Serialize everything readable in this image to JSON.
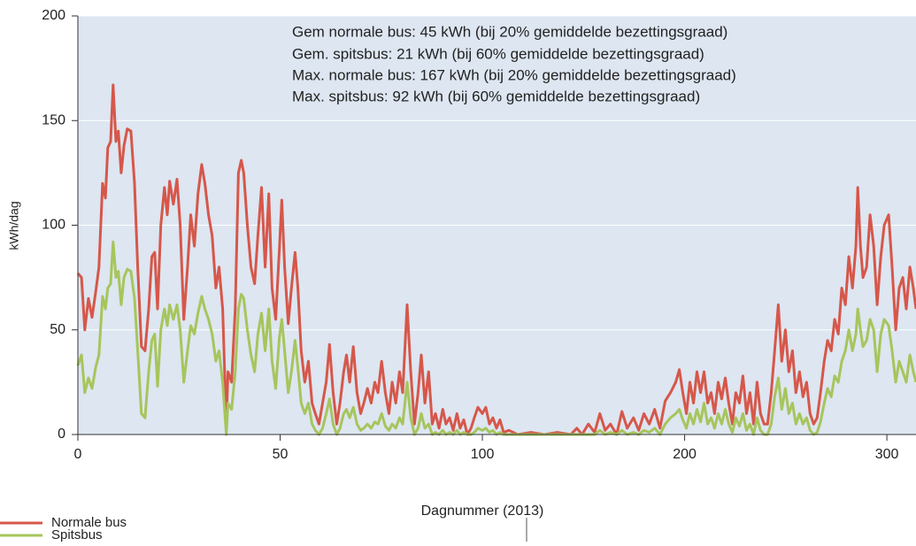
{
  "chart_data": {
    "type": "line",
    "annotations": [
      "Gem normale bus: 45 kWh (bij 20% gemiddelde bezettingsgraad)",
      "Gem. spitsbus: 21 kWh (bij 60% gemiddelde bezettingsgraad)",
      "Max. normale bus: 167 kWh (bij 20% gemiddelde bezettingsgraad)",
      "Max. spitsbus: 92 kWh (bij 60% gemiddelde bezettingsgraad)"
    ],
    "x_label": "Dagnummer (2013)",
    "y_label": "kWh/dag",
    "xlim": [
      0,
      314.4
    ],
    "xticks": [
      0,
      50,
      100,
      200,
      300
    ],
    "ylim": [
      0,
      200
    ],
    "yticks": [
      0,
      50,
      100,
      150,
      200
    ],
    "grid": true,
    "x": [
      0,
      0.9,
      1.7,
      2.6,
      3.5,
      4.4,
      5.2,
      6.1,
      6.8,
      7.4,
      8.1,
      8.7,
      9.4,
      10.0,
      10.7,
      11.4,
      12.2,
      13.1,
      14.0,
      14.8,
      15.7,
      16.6,
      17.5,
      18.3,
      19.0,
      19.7,
      20.5,
      21.4,
      22.1,
      22.7,
      23.6,
      24.5,
      25.3,
      26.2,
      27.1,
      27.9,
      28.8,
      29.7,
      30.6,
      31.4,
      32.3,
      33.2,
      34.1,
      34.9,
      35.8,
      36.7,
      37.1,
      38.0,
      38.9,
      39.7,
      40.4,
      41.0,
      41.9,
      42.8,
      43.7,
      44.5,
      45.4,
      46.3,
      47.2,
      48.0,
      48.9,
      49.8,
      50.4,
      51.1,
      52.0,
      52.8,
      53.7,
      54.4,
      55.2,
      56.1,
      57.0,
      57.9,
      58.7,
      59.6,
      60.5,
      61.4,
      62.2,
      63.1,
      64.0,
      64.8,
      65.7,
      66.4,
      67.2,
      68.1,
      69.0,
      69.9,
      70.7,
      71.6,
      72.5,
      73.4,
      74.2,
      75.1,
      76.0,
      76.9,
      77.7,
      78.6,
      79.5,
      80.3,
      81.4,
      82.3,
      83.2,
      84.1,
      84.9,
      85.8,
      86.7,
      87.6,
      88.4,
      89.3,
      90.2,
      91.0,
      91.9,
      92.8,
      93.7,
      94.5,
      95.4,
      96.3,
      97.2,
      98.0,
      98.9,
      100,
      101.7,
      103.5,
      105.2,
      107.0,
      108.7,
      110.5,
      113.1,
      117.5,
      124.0,
      130.6,
      137.1,
      143.7,
      146.7,
      149.3,
      152.4,
      155.5,
      158.1,
      160.7,
      163.3,
      166.4,
      169.0,
      171.6,
      174.7,
      177.3,
      179.9,
      182.5,
      185.2,
      187.8,
      190.4,
      193.0,
      195.6,
      197.4,
      199.1,
      200.9,
      202.6,
      204.4,
      206.1,
      207.9,
      209.6,
      211.4,
      213.1,
      214.8,
      216.6,
      218.3,
      220.1,
      221.8,
      223.6,
      225.3,
      227.1,
      228.8,
      230.6,
      232.3,
      234.1,
      235.8,
      237.5,
      239.3,
      241.0,
      242.8,
      244.5,
      246.3,
      248.0,
      249.8,
      251.5,
      253.3,
      255.0,
      256.8,
      258.5,
      260.3,
      262.0,
      263.8,
      265.5,
      267.2,
      269.0,
      270.7,
      272.5,
      274.2,
      276.0,
      277.7,
      279.5,
      281.2,
      283.0,
      284.7,
      285.6,
      286.9,
      288.2,
      290.0,
      291.7,
      293.5,
      295.2,
      297.0,
      298.7,
      300.9,
      302.6,
      304.4,
      306.1,
      307.9,
      309.6,
      311.4,
      313.1,
      314.4
    ],
    "series": [
      {
        "name": "Normale bus",
        "color": "#d6574a",
        "values": [
          77,
          75,
          50,
          65,
          56,
          68,
          80,
          120,
          113,
          137,
          140,
          167,
          140,
          145,
          125,
          138,
          146,
          145,
          120,
          80,
          42,
          40,
          60,
          85,
          87,
          60,
          100,
          118,
          105,
          121,
          110,
          122,
          100,
          55,
          80,
          105,
          90,
          115,
          129,
          120,
          105,
          95,
          70,
          80,
          60,
          5,
          30,
          25,
          60,
          125,
          131,
          125,
          100,
          80,
          72,
          95,
          118,
          80,
          115,
          70,
          55,
          88,
          112,
          80,
          53,
          70,
          87,
          70,
          40,
          25,
          35,
          15,
          10,
          5,
          15,
          25,
          43,
          20,
          5,
          15,
          30,
          38,
          25,
          42,
          20,
          10,
          15,
          22,
          15,
          25,
          20,
          35,
          20,
          10,
          25,
          15,
          30,
          20,
          62,
          30,
          5,
          20,
          38,
          15,
          30,
          5,
          10,
          3,
          12,
          5,
          8,
          2,
          10,
          3,
          7,
          0,
          3,
          8,
          13,
          10,
          13,
          5,
          8,
          3,
          7,
          1,
          2,
          0,
          1,
          0,
          1,
          0,
          3,
          0,
          5,
          1,
          10,
          2,
          5,
          0,
          11,
          3,
          8,
          2,
          10,
          5,
          12,
          3,
          16,
          20,
          25,
          31,
          20,
          10,
          25,
          15,
          30,
          20,
          30,
          15,
          20,
          10,
          25,
          17,
          27,
          15,
          5,
          20,
          15,
          28,
          10,
          20,
          5,
          25,
          10,
          5,
          5,
          20,
          40,
          62,
          35,
          50,
          30,
          40,
          20,
          30,
          18,
          25,
          10,
          5,
          8,
          20,
          35,
          45,
          40,
          55,
          48,
          70,
          62,
          85,
          70,
          90,
          118,
          90,
          75,
          80,
          105,
          90,
          62,
          85,
          100,
          105,
          80,
          50,
          70,
          75,
          60,
          80,
          70,
          60
        ]
      },
      {
        "name": "Spitsbus",
        "color": "#a6c55c",
        "values": [
          33,
          38,
          20,
          27,
          22,
          32,
          38,
          66,
          60,
          70,
          72,
          92,
          75,
          78,
          62,
          75,
          79,
          78,
          65,
          40,
          10,
          8,
          30,
          45,
          48,
          23,
          50,
          60,
          52,
          62,
          55,
          62,
          50,
          25,
          40,
          52,
          48,
          58,
          66,
          60,
          55,
          48,
          35,
          40,
          25,
          0,
          15,
          12,
          30,
          60,
          67,
          65,
          50,
          38,
          30,
          48,
          58,
          40,
          60,
          35,
          22,
          46,
          55,
          40,
          20,
          30,
          45,
          32,
          15,
          10,
          15,
          5,
          2,
          0,
          3,
          10,
          17,
          5,
          0,
          3,
          10,
          12,
          8,
          13,
          5,
          2,
          3,
          5,
          3,
          6,
          5,
          10,
          4,
          2,
          5,
          3,
          8,
          5,
          25,
          8,
          0,
          3,
          10,
          3,
          5,
          0,
          1,
          0,
          2,
          0,
          1,
          0,
          2,
          0,
          1,
          0,
          0,
          1,
          3,
          2,
          3,
          1,
          2,
          0,
          1,
          0,
          0,
          0,
          0,
          0,
          0,
          0,
          0,
          0,
          0,
          0,
          2,
          0,
          1,
          0,
          2,
          0,
          1,
          0,
          2,
          1,
          3,
          0,
          5,
          8,
          10,
          12,
          7,
          3,
          10,
          5,
          12,
          6,
          15,
          5,
          8,
          3,
          10,
          5,
          12,
          5,
          1,
          8,
          4,
          10,
          2,
          5,
          0,
          8,
          2,
          0,
          0,
          5,
          18,
          27,
          12,
          22,
          10,
          15,
          5,
          10,
          5,
          8,
          2,
          0,
          1,
          6,
          15,
          22,
          18,
          28,
          25,
          35,
          40,
          50,
          40,
          48,
          60,
          50,
          42,
          45,
          55,
          50,
          30,
          48,
          55,
          52,
          40,
          25,
          35,
          30,
          25,
          38,
          30,
          25
        ]
      }
    ]
  }
}
